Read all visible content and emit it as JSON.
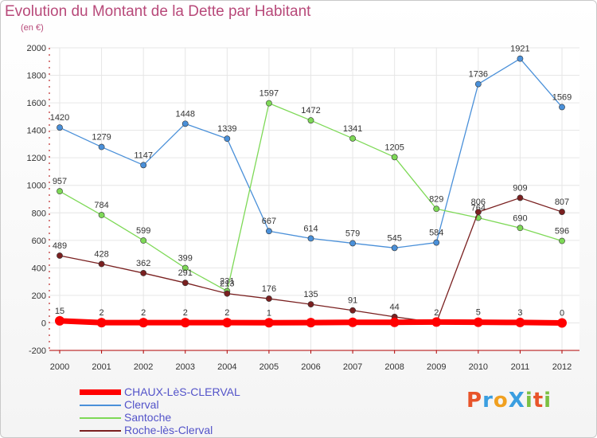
{
  "header": {
    "title": "Evolution du Montant de la Dette par Habitant",
    "subtitle": "(en €)"
  },
  "logo": {
    "text": "ProXiti"
  },
  "colors": {
    "title": "#b84a7a",
    "legend_text": "#5353c9",
    "axis": "#b00000",
    "grid": "#e6e6e6"
  },
  "chart_data": {
    "type": "line",
    "x": [
      "2000",
      "2001",
      "2002",
      "2003",
      "2004",
      "2005",
      "2006",
      "2007",
      "2008",
      "2009",
      "2010",
      "2011",
      "2012"
    ],
    "ylim": [
      -200,
      2000
    ],
    "yticks": [
      -200,
      0,
      200,
      400,
      600,
      800,
      1000,
      1200,
      1400,
      1600,
      1800,
      2000
    ],
    "grid": true,
    "legend_position": "bottom-left",
    "series": [
      {
        "name": "CHAUX-LèS-CLERVAL",
        "color": "#ff0000",
        "thick": true,
        "values": [
          15,
          2,
          2,
          2,
          2,
          1,
          2,
          4,
          4,
          6,
          5,
          3,
          0
        ],
        "labels": [
          "15",
          "2",
          "2",
          "2",
          "2",
          "1",
          "",
          "",
          "",
          "",
          "5",
          "3",
          "0"
        ]
      },
      {
        "name": "Clerval",
        "color": "#4a90d9",
        "values": [
          1420,
          1279,
          1147,
          1448,
          1339,
          667,
          614,
          579,
          545,
          584,
          1736,
          1921,
          1569
        ]
      },
      {
        "name": "Santoche",
        "color": "#7ed957",
        "values": [
          957,
          784,
          599,
          399,
          231,
          1597,
          1472,
          1341,
          1205,
          829,
          764,
          690,
          596
        ]
      },
      {
        "name": "Roche-lès-Clerval",
        "color": "#7a2020",
        "values": [
          489,
          428,
          362,
          291,
          213,
          176,
          135,
          91,
          44,
          2,
          806,
          909,
          807
        ]
      }
    ]
  }
}
